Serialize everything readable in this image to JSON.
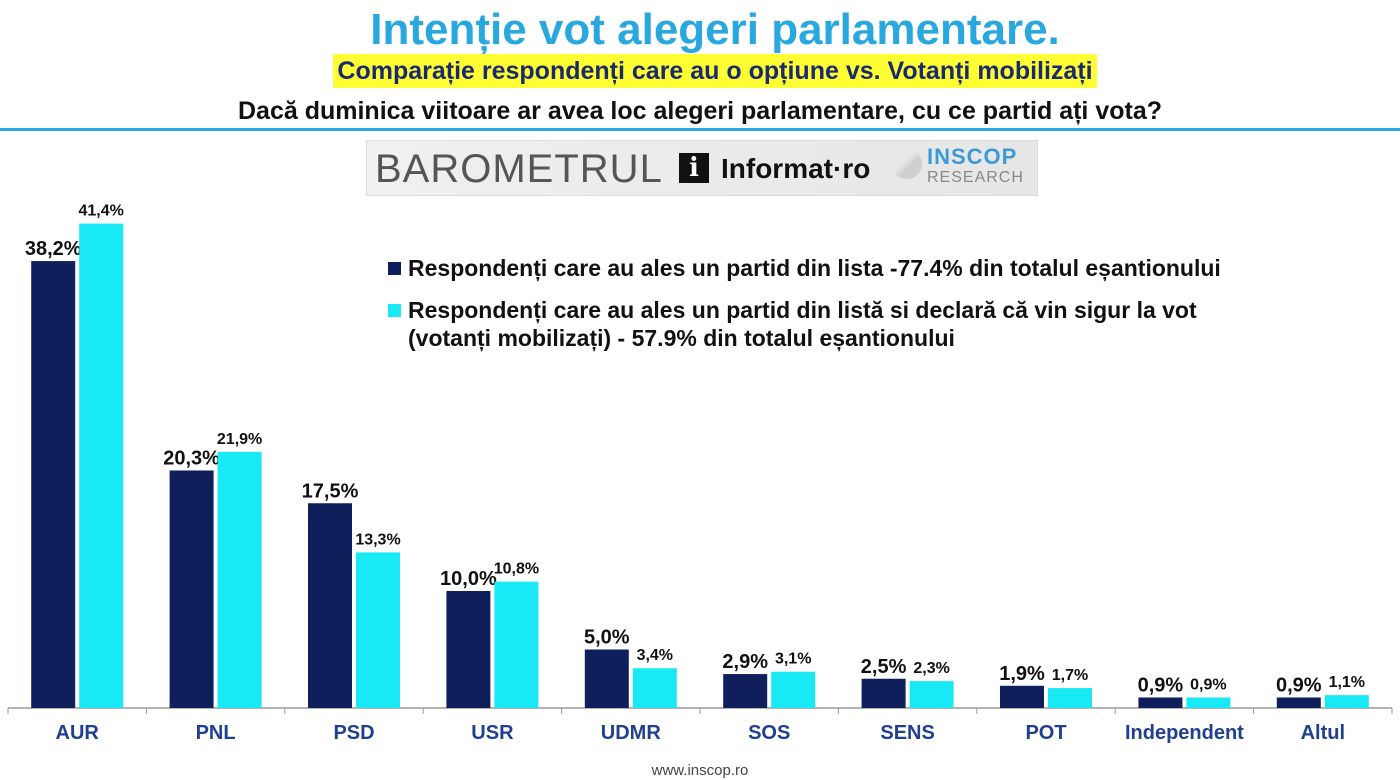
{
  "header": {
    "title": "Intenție vot alegeri parlamentare.",
    "subtitle": "Comparație respondenți care au o opțiune vs. Votanți mobilizați",
    "question": "Dacă duminica viitoare ar avea loc alegeri parlamentare, cu ce partid ați vota?"
  },
  "banner": {
    "barometru": "BAROMETRUL",
    "informat_icon": "i",
    "informat": "Informat·ro",
    "inscop": "INSCOP",
    "research": "RESEARCH"
  },
  "footer": {
    "url": "www.inscop.ro"
  },
  "colors": {
    "series1": "#0f1f5c",
    "series2": "#19e8f5",
    "accent": "#29a8e0",
    "highlight": "#ffff33"
  },
  "chart_data": {
    "type": "bar",
    "title": "Intenție vot alegeri parlamentare.",
    "xlabel": "",
    "ylabel": "",
    "ylim": [
      0,
      45
    ],
    "grid": false,
    "legend_position": "top-center",
    "categories": [
      "AUR",
      "PNL",
      "PSD",
      "USR",
      "UDMR",
      "SOS",
      "SENS",
      "POT",
      "Independent",
      "Altul"
    ],
    "series": [
      {
        "name": "Respondenți care au ales un partid din lista -77.4%  din totalul eșantionului",
        "values": [
          38.2,
          20.3,
          17.5,
          10.0,
          5.0,
          2.9,
          2.5,
          1.9,
          0.9,
          0.9
        ],
        "labels": [
          "38,2%",
          "20,3%",
          "17,5%",
          "10,0%",
          "5,0%",
          "2,9%",
          "2,5%",
          "1,9%",
          "0,9%",
          "0,9%"
        ]
      },
      {
        "name": "Respondenți care au ales un partid din listă si declară că vin sigur la vot (votanți mobilizați) - 57.9%  din totalul eșantionului",
        "values": [
          41.4,
          21.9,
          13.3,
          10.8,
          3.4,
          3.1,
          2.3,
          1.7,
          0.9,
          1.1
        ],
        "labels": [
          "41,4%",
          "21,9%",
          "13,3%",
          "10,8%",
          "3,4%",
          "3,1%",
          "2,3%",
          "1,7%",
          "0,9%",
          "1,1%"
        ]
      }
    ]
  }
}
